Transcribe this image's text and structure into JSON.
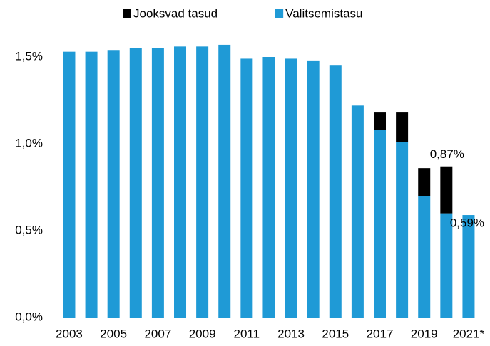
{
  "chart_data": {
    "type": "bar",
    "stacked": true,
    "categories": [
      "2003",
      null,
      "2005",
      null,
      "2007",
      null,
      "2009",
      null,
      "2011",
      null,
      "2013",
      null,
      "2015",
      null,
      "2017",
      null,
      "2019",
      null,
      "2021*"
    ],
    "series": [
      {
        "name": "Jooksvad tasud",
        "color": "#000000",
        "values": [
          0,
          0,
          0,
          0,
          0,
          0,
          0,
          0,
          0,
          0,
          0,
          0,
          0,
          0,
          0.1,
          0.17,
          0.16,
          0.27,
          0
        ]
      },
      {
        "name": "Valitsemistasu",
        "color": "#1f9ad6",
        "values": [
          1.53,
          1.53,
          1.54,
          1.55,
          1.55,
          1.56,
          1.56,
          1.57,
          1.49,
          1.5,
          1.49,
          1.48,
          1.45,
          1.22,
          1.08,
          1.01,
          0.7,
          0.6,
          0.59
        ],
        "value_labels": [
          null,
          null,
          null,
          null,
          null,
          null,
          null,
          null,
          null,
          null,
          null,
          null,
          null,
          null,
          null,
          null,
          null,
          null,
          "0,59%"
        ]
      }
    ],
    "annotations": [
      {
        "text": "0,87%",
        "value": 0.87,
        "category_index": 17
      }
    ],
    "ylim": [
      0,
      1.65
    ],
    "yticks": [
      {
        "value": 0,
        "label": "0,0%"
      },
      {
        "value": 0.5,
        "label": "0,5%"
      },
      {
        "value": 1,
        "label": "1,0%"
      },
      {
        "value": 1.5,
        "label": "1,5%"
      }
    ],
    "grid": false,
    "legend": "top"
  }
}
